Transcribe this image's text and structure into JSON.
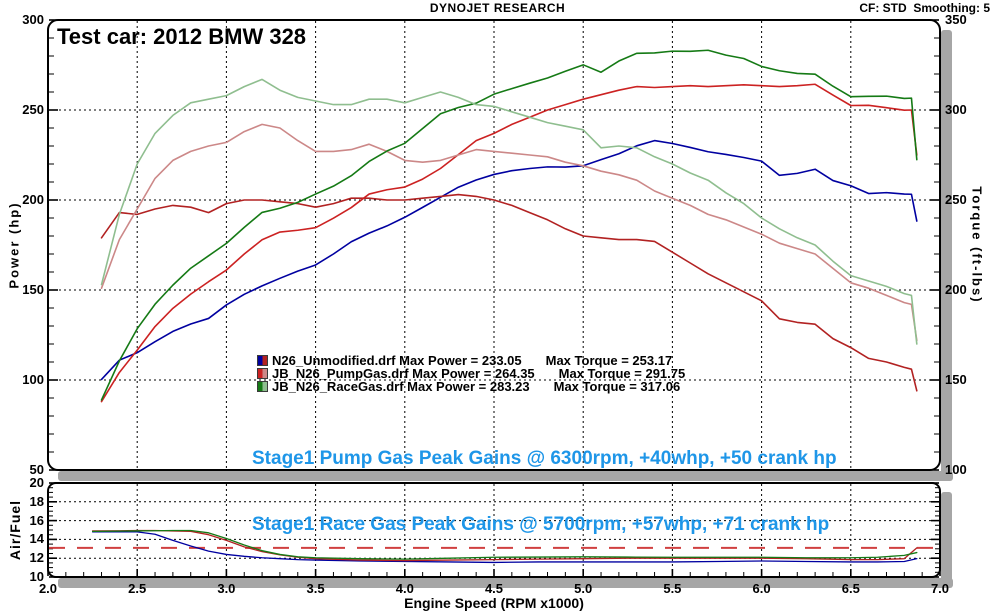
{
  "header": {
    "title": "DYNOJET RESEARCH",
    "cf_label": "CF: STD  Smoothing: 5"
  },
  "test_car_label": "Test car: 2012 BMW 328",
  "legend_rows": [
    {
      "left_text": "N26_Unmodified.drf Max Power = 233.05",
      "right_text": "Max Torque = 253.17",
      "swatch": [
        "#0000A0",
        "#B22222"
      ]
    },
    {
      "left_text": "JB_N26_PumpGas.drf Max Power = 264.35",
      "right_text": "Max Torque = 291.75",
      "swatch": [
        "#CC2222",
        "#CC8888"
      ]
    },
    {
      "left_text": "JB_N26_RaceGas.drf Max Power = 283.23",
      "right_text": "Max Torque = 317.06",
      "swatch": [
        "#157A15",
        "#8FBE8F"
      ]
    }
  ],
  "gains": {
    "color": "#1E96E8",
    "lines": [
      "Stage1 Pump Gas Peak Gains @ 6300rpm, +40whp, +50 crank hp",
      "Stage1 Race Gas Peak Gains @ 5700rpm, +57whp, +71 crank hp"
    ]
  },
  "axes": {
    "x_label": "Engine Speed (RPM x1000)",
    "y_left_label": "Power (hp)",
    "y_right_label": "Torque (ft-lbs)",
    "afr_label": "Air/Fuel"
  },
  "chart_data": [
    {
      "type": "line",
      "title": "DYNOJET RESEARCH",
      "x_label": "Engine Speed (RPM x1000)",
      "x_range": [
        2.0,
        7.0
      ],
      "x_major_ticks": [
        2.0,
        2.5,
        3.0,
        3.5,
        4.0,
        4.5,
        5.0,
        5.5,
        6.0,
        6.5,
        7.0
      ],
      "y_left_label": "Power (hp)",
      "y_left_range": [
        50,
        300
      ],
      "y_left_ticks": [
        50,
        100,
        150,
        200,
        250,
        300
      ],
      "y_right_label": "Torque (ft-lbs)",
      "y_right_range": [
        100,
        350
      ],
      "y_right_ticks": [
        100,
        150,
        200,
        250,
        300,
        350
      ],
      "grid": "dashed",
      "legend_position": "inside-lower-middle",
      "rpm": [
        2.3,
        2.4,
        2.5,
        2.6,
        2.7,
        2.8,
        2.9,
        3.0,
        3.1,
        3.2,
        3.3,
        3.4,
        3.5,
        3.6,
        3.7,
        3.8,
        3.9,
        4.0,
        4.1,
        4.2,
        4.3,
        4.4,
        4.5,
        4.6,
        4.7,
        4.8,
        4.9,
        5.0,
        5.1,
        5.2,
        5.3,
        5.4,
        5.5,
        5.6,
        5.7,
        5.8,
        5.9,
        6.0,
        6.1,
        6.2,
        6.3,
        6.4,
        6.5,
        6.6,
        6.7,
        6.8,
        6.84,
        6.87
      ],
      "series": [
        {
          "name": "N26_Unmodified.drf Power",
          "axis": "left",
          "color": "#0000A0",
          "max": 233.05,
          "values": [
            100.3,
            111.0,
            115.2,
            121.3,
            127.0,
            131.1,
            134.2,
            141.7,
            147.6,
            152.3,
            156.5,
            160.5,
            163.9,
            170.0,
            176.8,
            181.6,
            185.6,
            190.4,
            195.9,
            201.5,
            207.1,
            211.1,
            214.2,
            216.3,
            217.5,
            218.4,
            218.3,
            219.0,
            222.4,
            225.7,
            230.1,
            233.0,
            231.4,
            229.2,
            226.8,
            225.3,
            223.6,
            221.6,
            213.7,
            214.8,
            217.1,
            210.8,
            207.9,
            203.6,
            204.1,
            203.3,
            203.2,
            188.3
          ]
        },
        {
          "name": "N26_Unmodified.drf Torque",
          "axis": "right",
          "color": "#B22222",
          "max": 253.17,
          "values": [
            229,
            243,
            242,
            245,
            247,
            246,
            243,
            248,
            250,
            250,
            249,
            248,
            246,
            248,
            251,
            251,
            250,
            250,
            251,
            252,
            253,
            252,
            250,
            247,
            243,
            239,
            234,
            230,
            229,
            228,
            228,
            227,
            221,
            215,
            209,
            204,
            199,
            194,
            184,
            182,
            181,
            173,
            168,
            162,
            160,
            157,
            156,
            144
          ]
        },
        {
          "name": "JB_N26_PumpGas.drf Power",
          "axis": "left",
          "color": "#CC2222",
          "max": 264.35,
          "values": [
            88.0,
            104.2,
            116.6,
            129.7,
            139.8,
            147.7,
            154.6,
            161.1,
            170.0,
            177.9,
            182.2,
            183.2,
            184.6,
            189.9,
            195.8,
            203.3,
            205.7,
            207.2,
            211.6,
            217.5,
            225.2,
            233.0,
            237.0,
            242.0,
            246.0,
            250.0,
            253.0,
            256.0,
            258.5,
            261.0,
            263.0,
            262.5,
            263.0,
            263.5,
            263.0,
            263.5,
            264.0,
            263.5,
            263.0,
            263.5,
            264.3,
            258.3,
            252.5,
            252.6,
            251.3,
            249.9,
            250.0,
            225.0
          ]
        },
        {
          "name": "JB_N26_PumpGas.drf Torque",
          "axis": "right",
          "color": "#CC8888",
          "max": 291.75,
          "values": [
            201,
            228,
            245,
            262,
            272,
            277,
            280,
            282,
            288,
            292,
            290,
            283,
            277,
            277,
            278,
            281,
            277,
            272,
            271,
            272,
            275,
            278,
            277,
            276,
            275,
            274,
            271,
            269,
            266,
            264,
            261,
            255,
            251,
            247,
            242,
            239,
            235,
            231,
            226,
            223,
            220,
            212,
            204,
            201,
            197,
            193,
            192,
            172
          ]
        },
        {
          "name": "JB_N26_RaceGas.drf Power",
          "axis": "left",
          "color": "#157A15",
          "max": 283.23,
          "values": [
            88.9,
            110.6,
            128.5,
            142.1,
            152.7,
            162.1,
            169.0,
            175.9,
            184.8,
            193.1,
            195.4,
            198.7,
            203.3,
            207.7,
            213.5,
            221.4,
            227.2,
            231.5,
            239.7,
            247.9,
            251.4,
            253.8,
            258.8,
            261.9,
            264.9,
            267.8,
            271.5,
            275.1,
            271.0,
            277.2,
            281.5,
            281.7,
            282.7,
            282.6,
            283.2,
            280.5,
            278.6,
            274.2,
            271.8,
            270.3,
            269.9,
            263.2,
            257.4,
            257.6,
            257.7,
            256.4,
            256.6,
            222.4
          ]
        },
        {
          "name": "JB_N26_RaceGas.drf Torque",
          "axis": "right",
          "color": "#8FBE8F",
          "max": 317.06,
          "values": [
            203,
            242,
            270,
            287,
            297,
            304,
            306,
            308,
            313,
            317,
            311,
            307,
            305,
            303,
            303,
            306,
            306,
            304,
            307,
            310,
            307,
            303,
            302,
            299,
            296,
            293,
            291,
            289,
            279,
            280,
            279,
            274,
            270,
            265,
            261,
            254,
            248,
            240,
            234,
            229,
            225,
            216,
            208,
            205,
            202,
            198,
            197,
            170
          ]
        }
      ]
    },
    {
      "type": "line",
      "y_label": "Air/Fuel",
      "y_range": [
        10,
        20
      ],
      "y_major_ticks": [
        10,
        12,
        14,
        16,
        18,
        20
      ],
      "x_range": [
        2.0,
        7.0
      ],
      "grid": "dashed",
      "target_line": {
        "value": 13.1,
        "color": "#D04040",
        "style": "dashed"
      },
      "rpm": [
        2.25,
        2.4,
        2.5,
        2.6,
        2.7,
        2.8,
        2.9,
        3.0,
        3.1,
        3.2,
        3.3,
        3.4,
        3.5,
        3.75,
        4.0,
        4.25,
        4.5,
        4.75,
        5.0,
        5.25,
        5.5,
        5.75,
        6.0,
        6.25,
        6.5,
        6.65,
        6.8,
        6.87
      ],
      "series": [
        {
          "name": "N26_Unmodified.drf AFR",
          "color": "#0000A0",
          "values": [
            14.8,
            14.8,
            14.8,
            14.55,
            13.9,
            13.3,
            12.75,
            12.4,
            12.2,
            12.05,
            11.95,
            11.85,
            11.8,
            11.7,
            11.65,
            11.6,
            11.55,
            11.6,
            11.6,
            11.6,
            11.6,
            11.65,
            11.7,
            11.65,
            11.6,
            11.6,
            11.65,
            11.95
          ]
        },
        {
          "name": "JB_N26_PumpGas.drf AFR",
          "color": "#B22222",
          "values": [
            14.9,
            14.92,
            14.95,
            14.95,
            14.9,
            14.85,
            14.5,
            13.9,
            13.2,
            12.7,
            12.35,
            12.1,
            11.95,
            11.8,
            11.75,
            11.8,
            11.85,
            11.9,
            11.95,
            12.0,
            12.0,
            12.0,
            12.0,
            11.95,
            11.85,
            11.85,
            11.95,
            13.1
          ]
        },
        {
          "name": "JB_N26_RaceGas.drf AFR",
          "color": "#157A15",
          "values": [
            14.85,
            14.88,
            14.9,
            14.92,
            14.95,
            14.95,
            14.7,
            14.1,
            13.4,
            12.8,
            12.4,
            12.15,
            12.05,
            11.95,
            11.9,
            12.0,
            12.1,
            12.12,
            12.15,
            12.12,
            12.1,
            12.1,
            12.1,
            12.05,
            12.05,
            12.1,
            12.3,
            12.6
          ]
        }
      ]
    }
  ]
}
